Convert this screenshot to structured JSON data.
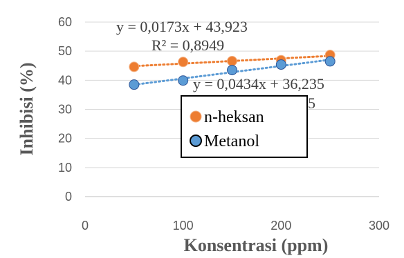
{
  "chart_data": {
    "type": "scatter",
    "xlabel": "Konsentrasi (ppm)",
    "ylabel": "Inhibisi (%)",
    "xlim": [
      0,
      300
    ],
    "ylim": [
      0,
      60
    ],
    "x_ticks": [
      "0",
      "100",
      "200",
      "300"
    ],
    "y_ticks": [
      "0",
      "10",
      "20",
      "30",
      "40",
      "50",
      "60"
    ],
    "grid": "horizontal",
    "legend_placement": "center",
    "series": [
      {
        "name": "n-heksan",
        "color": "#ED7D31",
        "marker_edge": "#F4B183",
        "x": [
          50,
          100,
          150,
          200,
          250
        ],
        "y": [
          44.6,
          46.3,
          46.6,
          46.9,
          48.7
        ],
        "trendline": {
          "equation": "y = 0,0173x + 43,923",
          "r2": "R² = 0,8949"
        }
      },
      {
        "name": "Metanol",
        "color": "#5B9BD5",
        "marker_edge": "#2F5597",
        "x": [
          50,
          100,
          150,
          200,
          250
        ],
        "y": [
          38.5,
          39.9,
          43.5,
          45.4,
          46.5
        ],
        "trendline": {
          "equation": "y = 0,0434x + 36,235",
          "r2_partial": "55"
        }
      }
    ]
  }
}
